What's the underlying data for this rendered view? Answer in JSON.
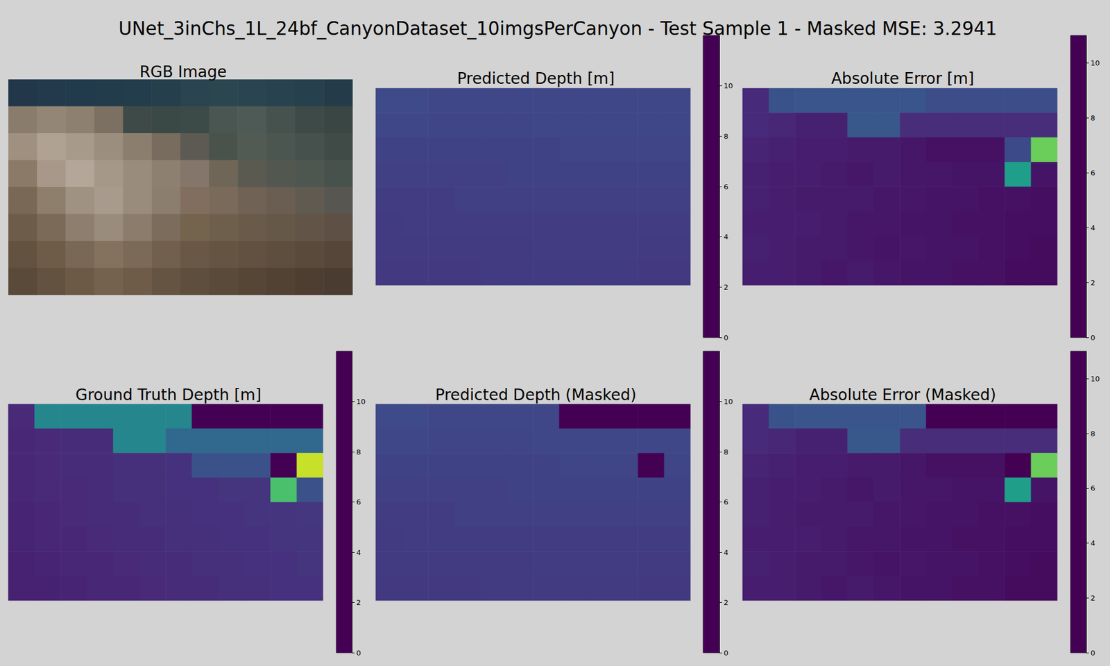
{
  "chart_data": {
    "type": "heatmap_grid",
    "title": "UNet_3inChs_1L_24bf_CanyonDataset_10imgsPerCanyon - Test Sample 1 - Masked MSE: 3.2941",
    "panels": [
      {
        "title": "RGB Image",
        "type": "image",
        "cells": [
          [
            "#22384a",
            "#223a4c",
            "#213a4c",
            "#233c4c",
            "#243d4c",
            "#263f4c",
            "#2a4450",
            "#2c4650",
            "#2a4450",
            "#284250",
            "#26404e",
            "#243c4a"
          ],
          [
            "#8a7c6c",
            "#948676",
            "#8e8070",
            "#7c7062",
            "#3e4a48",
            "#3a4846",
            "#3c4a48",
            "#4a5652",
            "#4e5a56",
            "#46524e",
            "#3e4a48",
            "#3a4644"
          ],
          [
            "#a09080",
            "#b0a292",
            "#a89a8a",
            "#9c8e7e",
            "#8c7e6e",
            "#786c5e",
            "#5c5a52",
            "#4a524c",
            "#525a54",
            "#4c5650",
            "#46504c",
            "#404a46"
          ],
          [
            "#8c7a68",
            "#a8988a",
            "#b4a698",
            "#a69888",
            "#9a8c7c",
            "#8e8070",
            "#84766a",
            "#706658",
            "#5a5a50",
            "#525850",
            "#4e5650",
            "#48524c"
          ],
          [
            "#7a6856",
            "#8e7e6c",
            "#a09282",
            "#a89a8c",
            "#9a8c7c",
            "#8c7e6e",
            "#826e5e",
            "#7a6a5a",
            "#706254",
            "#6a5e52",
            "#605a50",
            "#585650"
          ],
          [
            "#6e5c4a",
            "#7c6a58",
            "#8e7e6e",
            "#9a8c7c",
            "#8c7c6c",
            "#7c6c5c",
            "#74644e",
            "#6e5e4c",
            "#6a5a4a",
            "#665848",
            "#625446",
            "#5e5044"
          ],
          [
            "#645240",
            "#6e5c48",
            "#7a6856",
            "#84725e",
            "#7c6a58",
            "#72604e",
            "#6a5846",
            "#665442",
            "#625040",
            "#5e4e3e",
            "#5a4a3c",
            "#56463a"
          ],
          [
            "#5a4a3a",
            "#645240",
            "#6c5a46",
            "#74624e",
            "#6e5c48",
            "#665442",
            "#5e4e3e",
            "#5a4a3a",
            "#564636",
            "#524234",
            "#4e3e32",
            "#4a3c30"
          ]
        ]
      },
      {
        "title": "Predicted Depth [m]",
        "type": "heatmap",
        "clim": [
          0,
          12
        ],
        "cticks": [
          0,
          2,
          4,
          6,
          8,
          10
        ],
        "cells": [
          [
            2.7,
            2.7,
            2.6,
            2.6,
            2.6,
            2.6,
            2.6,
            2.6,
            2.6,
            2.6,
            2.6,
            2.6
          ],
          [
            2.6,
            2.6,
            2.5,
            2.5,
            2.5,
            2.5,
            2.6,
            2.6,
            2.6,
            2.6,
            2.6,
            2.6
          ],
          [
            2.4,
            2.4,
            2.4,
            2.4,
            2.4,
            2.4,
            2.4,
            2.5,
            2.5,
            2.5,
            2.5,
            2.5
          ],
          [
            2.3,
            2.3,
            2.3,
            2.3,
            2.3,
            2.4,
            2.4,
            2.4,
            2.4,
            2.4,
            2.4,
            2.4
          ],
          [
            2.2,
            2.2,
            2.2,
            2.3,
            2.3,
            2.3,
            2.3,
            2.3,
            2.3,
            2.3,
            2.3,
            2.3
          ],
          [
            2.1,
            2.2,
            2.2,
            2.2,
            2.2,
            2.2,
            2.2,
            2.2,
            2.2,
            2.2,
            2.2,
            2.2
          ],
          [
            2.1,
            2.1,
            2.1,
            2.1,
            2.1,
            2.1,
            2.2,
            2.2,
            2.2,
            2.2,
            2.1,
            2.1
          ],
          [
            2.0,
            2.0,
            2.0,
            2.0,
            2.1,
            2.1,
            2.1,
            2.1,
            2.1,
            2.1,
            2.0,
            2.0
          ]
        ]
      },
      {
        "title": "Absolute Error [m]",
        "type": "heatmap",
        "clim": [
          0,
          11
        ],
        "cticks": [
          0,
          2,
          4,
          6,
          8,
          10
        ],
        "cells": [
          [
            1.3,
            2.8,
            2.9,
            2.9,
            2.9,
            2.9,
            2.9,
            2.6,
            2.6,
            2.6,
            2.6,
            2.6
          ],
          [
            1.3,
            1.2,
            1.0,
            1.0,
            3.0,
            3.0,
            1.4,
            1.4,
            1.4,
            1.4,
            1.4,
            1.4
          ],
          [
            1.1,
            1.0,
            0.9,
            0.9,
            0.8,
            0.8,
            0.7,
            0.5,
            0.5,
            0.5,
            2.5,
            8.5
          ],
          [
            1.0,
            0.9,
            0.9,
            0.8,
            0.7,
            0.8,
            0.7,
            0.7,
            0.6,
            0.6,
            6.1,
            0.6
          ],
          [
            1.0,
            0.9,
            0.8,
            0.8,
            0.8,
            0.7,
            0.7,
            0.6,
            0.6,
            0.5,
            0.5,
            0.4
          ],
          [
            0.9,
            0.9,
            0.9,
            0.8,
            0.7,
            0.7,
            0.6,
            0.6,
            0.5,
            0.5,
            0.4,
            0.4
          ],
          [
            1.0,
            0.9,
            0.8,
            0.8,
            0.7,
            0.6,
            0.7,
            0.6,
            0.6,
            0.5,
            0.4,
            0.3
          ],
          [
            0.9,
            0.9,
            0.8,
            0.7,
            0.8,
            0.7,
            0.6,
            0.6,
            0.5,
            0.5,
            0.3,
            0.3
          ]
        ]
      },
      {
        "title": "Ground Truth Depth [m]",
        "type": "heatmap",
        "clim": [
          0,
          12
        ],
        "cticks": [
          0,
          2,
          4,
          6,
          8,
          10
        ],
        "cells": [
          [
            1.4,
            5.5,
            5.5,
            5.5,
            5.5,
            5.5,
            5.5,
            0,
            0,
            0,
            0,
            0
          ],
          [
            1.3,
            1.4,
            1.5,
            1.5,
            5.5,
            5.5,
            4.0,
            4.0,
            4.0,
            4.0,
            4.0,
            4.0
          ],
          [
            1.3,
            1.4,
            1.5,
            1.5,
            1.6,
            1.6,
            1.7,
            3.0,
            3.0,
            3.0,
            0,
            11.0
          ],
          [
            1.3,
            1.4,
            1.4,
            1.5,
            1.6,
            1.6,
            1.7,
            1.7,
            1.8,
            1.8,
            8.5,
            3.0
          ],
          [
            1.2,
            1.3,
            1.4,
            1.5,
            1.5,
            1.6,
            1.6,
            1.7,
            1.7,
            1.8,
            1.8,
            1.9
          ],
          [
            1.2,
            1.3,
            1.3,
            1.4,
            1.5,
            1.5,
            1.6,
            1.6,
            1.7,
            1.7,
            1.8,
            1.8
          ],
          [
            1.1,
            1.2,
            1.3,
            1.3,
            1.4,
            1.5,
            1.5,
            1.6,
            1.6,
            1.7,
            1.7,
            1.8
          ],
          [
            1.1,
            1.1,
            1.2,
            1.3,
            1.3,
            1.4,
            1.5,
            1.5,
            1.6,
            1.6,
            1.7,
            1.7
          ]
        ]
      },
      {
        "title": "Predicted Depth (Masked)",
        "type": "heatmap",
        "clim": [
          0,
          12
        ],
        "cticks": [
          0,
          2,
          4,
          6,
          8,
          10
        ],
        "cells": [
          [
            2.7,
            2.7,
            2.6,
            2.6,
            2.6,
            2.6,
            2.6,
            0,
            0,
            0,
            0,
            0
          ],
          [
            2.6,
            2.6,
            2.5,
            2.5,
            2.5,
            2.5,
            2.6,
            2.6,
            2.6,
            2.6,
            2.6,
            2.6
          ],
          [
            2.4,
            2.4,
            2.4,
            2.4,
            2.4,
            2.4,
            2.4,
            2.5,
            2.5,
            2.5,
            0,
            2.5
          ],
          [
            2.3,
            2.3,
            2.3,
            2.3,
            2.3,
            2.4,
            2.4,
            2.4,
            2.4,
            2.4,
            2.4,
            2.4
          ],
          [
            2.2,
            2.2,
            2.2,
            2.3,
            2.3,
            2.3,
            2.3,
            2.3,
            2.3,
            2.3,
            2.3,
            2.3
          ],
          [
            2.1,
            2.2,
            2.2,
            2.2,
            2.2,
            2.2,
            2.2,
            2.2,
            2.2,
            2.2,
            2.2,
            2.2
          ],
          [
            2.1,
            2.1,
            2.1,
            2.1,
            2.1,
            2.1,
            2.2,
            2.2,
            2.2,
            2.2,
            2.1,
            2.1
          ],
          [
            2.0,
            2.0,
            2.0,
            2.0,
            2.1,
            2.1,
            2.1,
            2.1,
            2.1,
            2.1,
            2.0,
            2.0
          ]
        ]
      },
      {
        "title": "Absolute Error (Masked)",
        "type": "heatmap",
        "clim": [
          0,
          11
        ],
        "cticks": [
          0,
          2,
          4,
          6,
          8,
          10
        ],
        "cells": [
          [
            1.3,
            2.8,
            2.9,
            2.9,
            2.9,
            2.9,
            2.9,
            0,
            0,
            0,
            0,
            0
          ],
          [
            1.3,
            1.2,
            1.0,
            1.0,
            3.0,
            3.0,
            1.4,
            1.4,
            1.4,
            1.4,
            1.4,
            1.4
          ],
          [
            1.1,
            1.0,
            0.9,
            0.9,
            0.8,
            0.8,
            0.7,
            0.5,
            0.5,
            0.5,
            0,
            8.5
          ],
          [
            1.0,
            0.9,
            0.9,
            0.8,
            0.7,
            0.8,
            0.7,
            0.7,
            0.6,
            0.6,
            6.1,
            0.6
          ],
          [
            1.0,
            0.9,
            0.8,
            0.8,
            0.8,
            0.7,
            0.7,
            0.6,
            0.6,
            0.5,
            0.5,
            0.4
          ],
          [
            0.9,
            0.9,
            0.9,
            0.8,
            0.7,
            0.7,
            0.6,
            0.6,
            0.5,
            0.5,
            0.4,
            0.4
          ],
          [
            1.0,
            0.9,
            0.8,
            0.8,
            0.7,
            0.6,
            0.7,
            0.6,
            0.6,
            0.5,
            0.4,
            0.3
          ],
          [
            0.9,
            0.9,
            0.8,
            0.7,
            0.8,
            0.7,
            0.6,
            0.6,
            0.5,
            0.5,
            0.3,
            0.3
          ]
        ]
      }
    ]
  }
}
